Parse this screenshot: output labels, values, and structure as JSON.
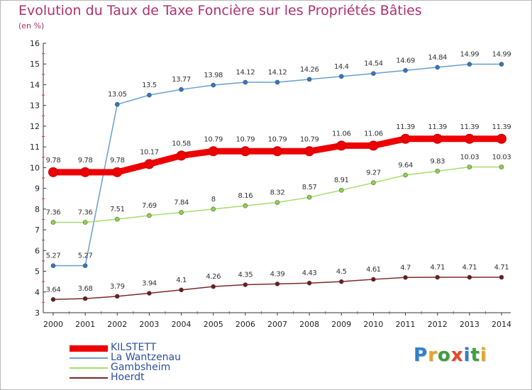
{
  "header": {
    "title": "Evolution du Taux de Taxe Foncière sur les Propriétés Bâties",
    "subtitle": "(en %)"
  },
  "logo": {
    "text": "Proxiti",
    "colors": [
      "#2f7ec9",
      "#e3a62b",
      "#3f9e3f",
      "#e04a2a",
      "#2f7ec9",
      "#3f9e3f",
      "#e3a62b"
    ]
  },
  "chart_data": {
    "type": "line",
    "title": "Evolution du Taux de Taxe Foncière sur les Propriétés Bâties",
    "ylabel": "(en %)",
    "xlabel": "",
    "x": [
      "2000",
      "2001",
      "2002",
      "2003",
      "2004",
      "2005",
      "2006",
      "2007",
      "2008",
      "2009",
      "2010",
      "2011",
      "2012",
      "2013",
      "2014"
    ],
    "ylim": [
      3,
      16
    ],
    "yticks": [
      "3",
      "4",
      "5",
      "6",
      "7",
      "8",
      "9",
      "10",
      "11",
      "12",
      "13",
      "14",
      "15",
      "16"
    ],
    "grid": false,
    "legend_position": "bottom-left",
    "series": [
      {
        "name": "KILSTETT",
        "color": "#ee0000",
        "marker_stroke": "#c10000",
        "values": [
          9.78,
          9.78,
          9.78,
          10.17,
          10.58,
          10.79,
          10.79,
          10.79,
          10.79,
          11.06,
          11.06,
          11.39,
          11.39,
          11.39,
          11.39
        ],
        "labels": [
          "9.78",
          "9.78",
          "9.78",
          "10.17",
          "10.58",
          "10.79",
          "10.79",
          "10.79",
          "10.79",
          "11.06",
          "11.06",
          "11.39",
          "11.39",
          "11.39",
          "11.39"
        ]
      },
      {
        "name": "La Wantzenau",
        "color": "#6a9ed0",
        "marker_fill": "#2f78c4",
        "values": [
          5.27,
          5.27,
          13.05,
          13.5,
          13.77,
          13.98,
          14.12,
          14.12,
          14.26,
          14.4,
          14.54,
          14.69,
          14.84,
          14.99,
          14.99
        ],
        "labels": [
          "5.27",
          "5.27",
          "13.05",
          "13.5",
          "13.77",
          "13.98",
          "14.12",
          "14.12",
          "14.26",
          "14.4",
          "14.54",
          "14.69",
          "14.84",
          "14.99",
          "14.99"
        ]
      },
      {
        "name": "Gambsheim",
        "color": "#a6dd6e",
        "marker_fill": "#8fd24e",
        "values": [
          7.36,
          7.36,
          7.51,
          7.69,
          7.84,
          8,
          8.16,
          8.32,
          8.57,
          8.91,
          9.27,
          9.64,
          9.83,
          10.03,
          10.03
        ],
        "labels": [
          "7.36",
          "7.36",
          "7.51",
          "7.69",
          "7.84",
          "8",
          "8.16",
          "8.32",
          "8.57",
          "8.91",
          "9.27",
          "9.64",
          "9.83",
          "10.03",
          "10.03"
        ]
      },
      {
        "name": "Hoerdt",
        "color": "#7a2a2a",
        "marker_fill": "#6b1c1c",
        "values": [
          3.64,
          3.68,
          3.79,
          3.94,
          4.1,
          4.26,
          4.35,
          4.39,
          4.43,
          4.5,
          4.61,
          4.7,
          4.71,
          4.71,
          4.71
        ],
        "labels": [
          "3.64",
          "3.68",
          "3.79",
          "3.94",
          "4.1",
          "4.26",
          "4.35",
          "4.39",
          "4.43",
          "4.5",
          "4.61",
          "4.7",
          "4.71",
          "4.71",
          "4.71"
        ]
      }
    ]
  }
}
